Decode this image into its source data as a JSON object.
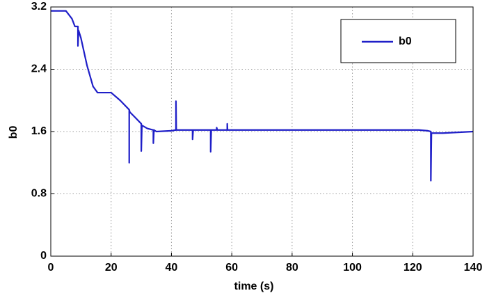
{
  "chart_data": {
    "type": "line",
    "x_label": "time (s)",
    "y_label": "b0",
    "x": [
      0,
      5,
      7,
      8,
      9,
      9,
      9.2,
      10,
      12,
      14,
      15.5,
      20,
      23,
      26,
      26,
      26,
      26.2,
      28,
      30,
      30,
      30.2,
      32,
      34,
      34,
      34.2,
      35,
      40,
      41.5,
      41.5,
      41.6,
      45,
      47,
      47,
      47.2,
      50,
      53,
      53,
      53.2,
      55,
      55,
      55.2,
      58.5,
      58.5,
      58.6,
      70,
      100,
      122,
      125,
      126,
      126,
      126.2,
      130,
      140
    ],
    "series": [
      {
        "name": "b0",
        "color": "#1f1fc8",
        "values": [
          3.15,
          3.15,
          3.05,
          2.95,
          2.95,
          2.7,
          2.9,
          2.8,
          2.45,
          2.18,
          2.1,
          2.1,
          2.0,
          1.88,
          1.2,
          1.88,
          1.85,
          1.78,
          1.7,
          1.35,
          1.68,
          1.64,
          1.62,
          1.45,
          1.62,
          1.6,
          1.61,
          1.62,
          1.99,
          1.62,
          1.62,
          1.62,
          1.5,
          1.62,
          1.62,
          1.62,
          1.34,
          1.62,
          1.62,
          1.65,
          1.62,
          1.62,
          1.7,
          1.62,
          1.62,
          1.62,
          1.62,
          1.61,
          1.6,
          0.97,
          1.58,
          1.58,
          1.6
        ]
      }
    ],
    "xlim": [
      0,
      140
    ],
    "ylim": [
      0,
      3.2
    ],
    "xticks": [
      0,
      20,
      40,
      60,
      80,
      100,
      120,
      140
    ],
    "yticks": [
      0,
      0.8,
      1.6,
      2.4,
      3.2
    ],
    "grid": true,
    "legend": "top-right"
  }
}
